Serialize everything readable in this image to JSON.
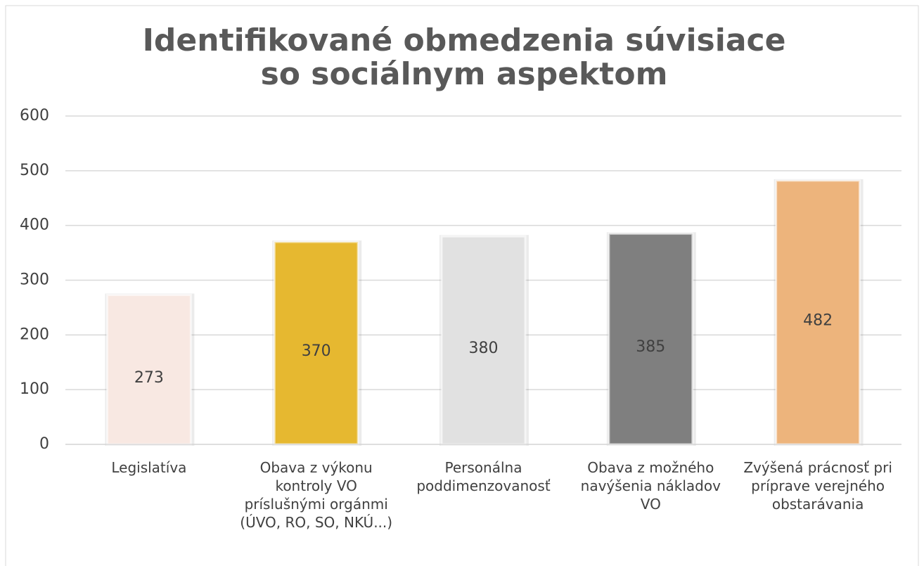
{
  "chart_data": {
    "type": "bar",
    "title": [
      "Identifikované obmedzenia súvisiace",
      "so sociálnym aspektom"
    ],
    "categories": [
      "Legislatíva",
      "Obava z výkonu kontroly VO príslušnými orgánmi (ÚVO, RO, SO, NKÚ...)",
      "Personálna poddimenzovanosť",
      "Obava z možného navýšenia nákladov VO",
      "Zvýšená prácnosť pri príprave verejného obstarávania"
    ],
    "values": [
      273,
      370,
      380,
      385,
      482
    ],
    "colors": [
      "#f8e8e2",
      "#e6b830",
      "#e1e1e1",
      "#7f7f7f",
      "#edb47c"
    ],
    "ylim": [
      0,
      600
    ],
    "yticks": [
      0,
      100,
      200,
      300,
      400,
      500,
      600
    ],
    "grid": true
  }
}
